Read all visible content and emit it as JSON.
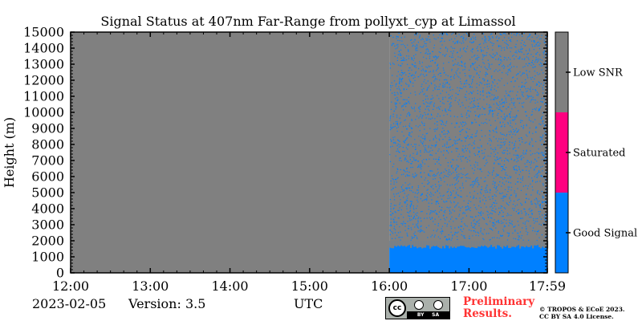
{
  "chart_data": {
    "type": "heatmap",
    "title": "Signal Status at 407nm Far-Range from pollyxt_cyp at Limassol",
    "xlabel": "",
    "ylabel": "Height (m)",
    "x_tick_labels": [
      "12:00",
      "13:00",
      "14:00",
      "15:00",
      "16:00",
      "17:00",
      "17:59"
    ],
    "x_ticks_hours": [
      12,
      13,
      14,
      15,
      16,
      17,
      17.983
    ],
    "x_range_hours": [
      12,
      17.983
    ],
    "y_ticks": [
      0,
      1000,
      2000,
      3000,
      4000,
      5000,
      6000,
      7000,
      8000,
      9000,
      10000,
      11000,
      12000,
      13000,
      14000,
      15000
    ],
    "y_range": [
      0,
      15000
    ],
    "categories": [
      "Good Signal",
      "Saturated",
      "Low SNR"
    ],
    "category_colors": [
      "#0080ff",
      "#ff0080",
      "#808080"
    ],
    "regions": [
      {
        "x_start": 12.0,
        "x_end": 16.0,
        "status": "Low SNR",
        "height_range": [
          0,
          15000
        ]
      },
      {
        "x_start": 16.0,
        "x_end": 17.983,
        "status": "Good Signal",
        "height_range": [
          0,
          2000
        ],
        "note_top_height_approx": 1500
      },
      {
        "x_start": 16.0,
        "x_end": 17.983,
        "status": "Low SNR",
        "height_range": [
          2000,
          15000
        ],
        "mixed_with": "Good Signal",
        "good_fraction_approx": 0.25
      }
    ],
    "colorbar_labels": [
      "Good Signal",
      "Saturated",
      "Low SNR"
    ]
  },
  "footer": {
    "date": "2023-02-05",
    "version": "Version: 3.5",
    "xaxis_unit": "UTC",
    "preliminary_line1": "Preliminary",
    "preliminary_line2": "Results.",
    "copyright_line1": "© TROPOS & ECoE 2023.",
    "copyright_line2": "CC BY SA 4.0 License.",
    "cc_badge": {
      "cc": "cc",
      "by": "BY",
      "sa": "SA"
    }
  },
  "colors": {
    "background": "#ffffff",
    "low_snr": "#808080",
    "good": "#0080ff",
    "saturated": "#ff0080",
    "preliminary": "#ff3333"
  }
}
